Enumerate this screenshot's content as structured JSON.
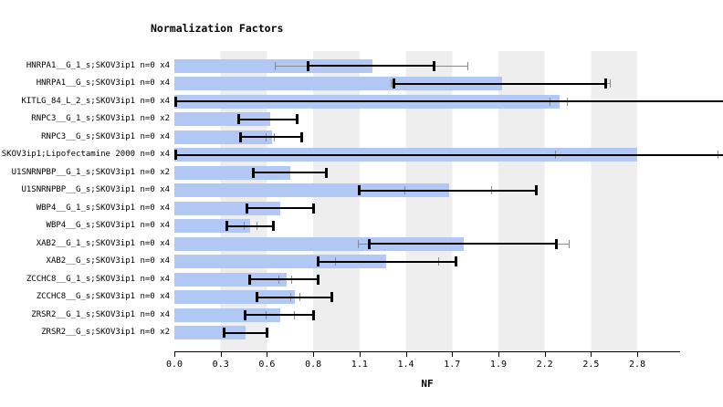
{
  "chart_data": {
    "type": "bar",
    "orientation": "horizontal",
    "title": "Normalization Factors",
    "xlabel": "NF",
    "legend": "none",
    "grid": "alternating-vertical-stripes",
    "stripe_color": "#eeeeee",
    "bar_color": "#b2c8f4",
    "error_bar_color": "#000000",
    "secondary_error_color": "#8a8a8a",
    "xlim": [
      0.0,
      3.06
    ],
    "x_ticks": [
      "0.0",
      "0.3",
      "0.6",
      "0.8",
      "1.1",
      "1.4",
      "1.7",
      "1.9",
      "2.2",
      "2.5",
      "2.8"
    ],
    "x_tick_values": [
      0.0,
      0.28,
      0.56,
      0.84,
      1.12,
      1.4,
      1.68,
      1.96,
      2.24,
      2.52,
      2.8
    ],
    "rows": [
      {
        "label": "HNRPA1__G_1_s;SKOV3ip1 n=0 x4",
        "value": 1.2,
        "err": [
          0.8,
          1.58
        ],
        "gray_err": [
          0.61,
          1.78
        ]
      },
      {
        "label": "HNRPA1__G_s;SKOV3ip1 n=0 x4",
        "value": 1.98,
        "err": [
          1.32,
          2.62
        ],
        "gray_err": [
          1.31,
          2.64
        ]
      },
      {
        "label": "KITLG_84_L_2_s;SKOV3ip1 n=0 x4",
        "value": 2.33,
        "err": [
          0.0,
          3.4
        ],
        "gray_err": [
          2.27,
          2.38
        ]
      },
      {
        "label": "RNPC3__G_1_s;SKOV3ip1 n=0 x2",
        "value": 0.58,
        "err": [
          0.38,
          0.75
        ]
      },
      {
        "label": "RNPC3__G_s;SKOV3ip1 n=0 x4",
        "value": 0.59,
        "err": [
          0.39,
          0.78
        ],
        "gray_err": [
          0.55,
          0.61
        ]
      },
      {
        "label": "SKOV3ip1;Lipofectamine 2000 n=0 x4",
        "value": 2.8,
        "err": [
          0.0,
          3.4
        ],
        "gray_err": [
          2.3,
          3.29
        ]
      },
      {
        "label": "U1SNRNPBP__G_1_s;SKOV3ip1 n=0 x2",
        "value": 0.7,
        "err": [
          0.47,
          0.93
        ]
      },
      {
        "label": "U1SNRNPBP__G_s;SKOV3ip1 n=0 x4",
        "value": 1.66,
        "err": [
          1.11,
          2.2
        ],
        "gray_err": [
          1.39,
          1.92
        ]
      },
      {
        "label": "WBP4__G_1_s;SKOV3ip1 n=0 x4",
        "value": 0.64,
        "err": [
          0.43,
          0.85
        ]
      },
      {
        "label": "WBP4__G_s;SKOV3ip1 n=0 x4",
        "value": 0.46,
        "err": [
          0.31,
          0.61
        ],
        "gray_err": [
          0.42,
          0.5
        ]
      },
      {
        "label": "XAB2__G_1_s;SKOV3ip1 n=0 x4",
        "value": 1.75,
        "err": [
          1.17,
          2.32
        ],
        "gray_err": [
          1.11,
          2.39
        ]
      },
      {
        "label": "XAB2__G_s;SKOV3ip1 n=0 x4",
        "value": 1.28,
        "err": [
          0.86,
          1.71
        ],
        "gray_err": [
          0.97,
          1.6
        ]
      },
      {
        "label": "ZCCHC8__G_1_s;SKOV3ip1 n=0 x4",
        "value": 0.68,
        "err": [
          0.45,
          0.88
        ],
        "gray_err": [
          0.63,
          0.71
        ]
      },
      {
        "label": "ZCCHC8__G_s;SKOV3ip1 n=0 x4",
        "value": 0.73,
        "err": [
          0.49,
          0.96
        ],
        "gray_err": [
          0.7,
          0.76
        ]
      },
      {
        "label": "ZRSR2__G_1_s;SKOV3ip1 n=0 x4",
        "value": 0.64,
        "err": [
          0.42,
          0.85
        ],
        "gray_err": [
          0.55,
          0.73
        ]
      },
      {
        "label": "ZRSR2__G_s;SKOV3ip1 n=0 x2",
        "value": 0.43,
        "err": [
          0.29,
          0.57
        ]
      }
    ]
  }
}
